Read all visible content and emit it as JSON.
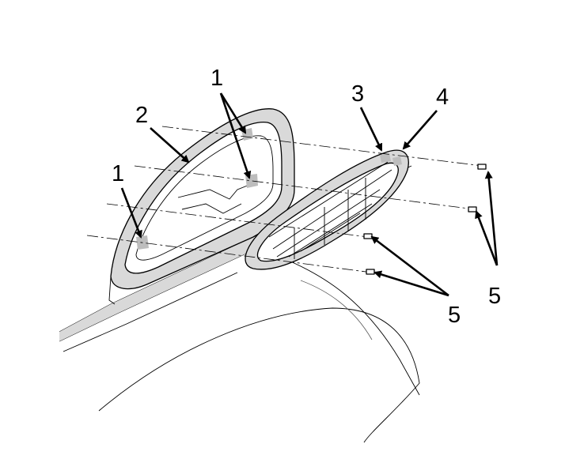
{
  "callouts": {
    "c1_top": "1",
    "c1_left": "1",
    "c2": "2",
    "c3": "3",
    "c4": "4",
    "c5_right": "5",
    "c5_bottom": "5"
  },
  "colors": {
    "line": "#000000",
    "shade": "#d9d9d9",
    "background": "#ffffff"
  }
}
